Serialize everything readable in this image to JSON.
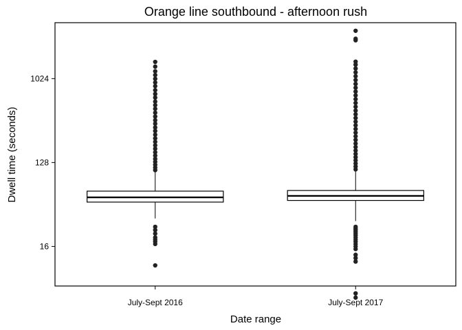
{
  "chart_data": {
    "type": "boxplot",
    "title": "Orange line southbound - afternoon rush",
    "xlabel": "Date range",
    "ylabel": "Dwell time (seconds)",
    "y_scale": "log2",
    "ylim": [
      6,
      4096
    ],
    "y_ticks": [
      16,
      128,
      1024
    ],
    "y_tick_labels": [
      "16",
      "128",
      "1024"
    ],
    "grid": false,
    "legend": "none",
    "categories": [
      "July-Sept 2016",
      "July-Sept 2017"
    ],
    "boxes": [
      {
        "category": "July-Sept 2016",
        "whisker_low": 32,
        "q1": 48,
        "median": 54,
        "q3": 63,
        "whisker_high": 103,
        "outliers_high": [
          106,
          113,
          121,
          130,
          140,
          152,
          165,
          180,
          196,
          214,
          233,
          255,
          280,
          305,
          335,
          365,
          400,
          440,
          485,
          530,
          580,
          640,
          700,
          770,
          850,
          930,
          1020,
          1120,
          1230,
          1380,
          1550
        ],
        "outliers_low": [
          26,
          24,
          22,
          20,
          19,
          18,
          17,
          10
        ]
      },
      {
        "category": "July-Sept 2017",
        "whisker_low": 30,
        "q1": 50,
        "median": 56,
        "q3": 64,
        "whisker_high": 105,
        "outliers_high": [
          108,
          116,
          125,
          135,
          146,
          158,
          172,
          188,
          205,
          224,
          245,
          268,
          294,
          322,
          352,
          386,
          423,
          464,
          510,
          560,
          615,
          676,
          743,
          817,
          898,
          988,
          1087,
          1195,
          1315,
          1447,
          1560,
          2650,
          2750,
          3350
        ],
        "outliers_low": [
          26,
          25,
          24,
          23,
          22,
          21,
          20,
          19,
          18,
          17,
          16,
          15,
          13,
          12,
          11,
          5,
          4.5
        ]
      }
    ]
  }
}
